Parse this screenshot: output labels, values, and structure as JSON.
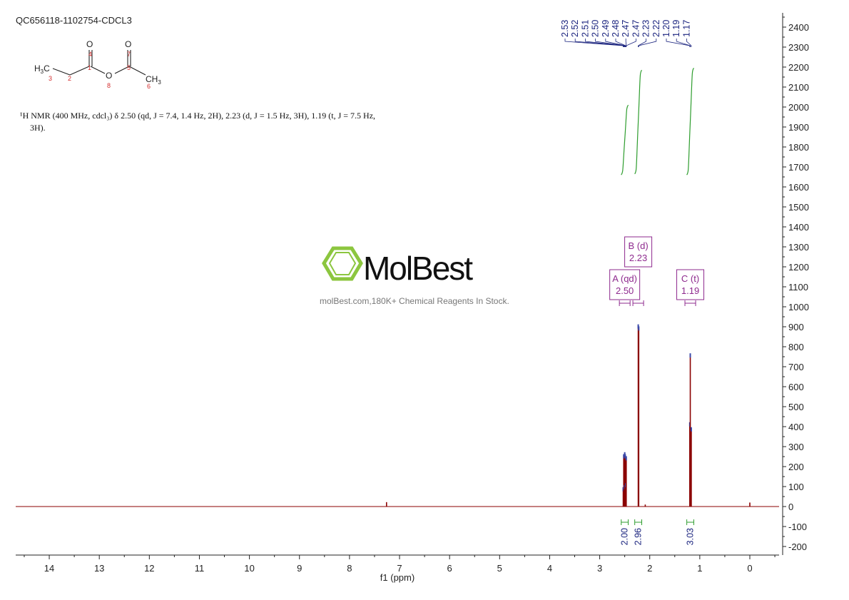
{
  "sample_id": "QC656118-1102754-CDCL3",
  "molecule": {
    "atoms": [
      {
        "sym": "H3C",
        "num": "3"
      },
      {
        "sym": "",
        "num": "2"
      },
      {
        "sym": "",
        "num": "1"
      },
      {
        "sym": "O",
        "num": "4"
      },
      {
        "sym": "O",
        "num": "8"
      },
      {
        "sym": "",
        "num": "5"
      },
      {
        "sym": "O",
        "num": "7"
      },
      {
        "sym": "CH3",
        "num": "6"
      }
    ]
  },
  "description": {
    "line1": "¹H NMR (400 MHz, cdcl₃) δ 2.50 (qd, J = 7.4, 1.4 Hz, 2H), 2.23 (d, J = 1.5 Hz, 3H), 1.19 (t, J = 7.5 Hz,",
    "line2": "3H)."
  },
  "watermark": {
    "brand": "MolBest",
    "tagline": "molBest.com,180K+ Chemical Reagents In Stock."
  },
  "colors": {
    "spectrum": "#8b0000",
    "peak_labels": "#1a237e",
    "integral_curve": "#2e9d2e",
    "multiplet_box": "#8e2a8e",
    "logo": "#8cc63f"
  },
  "chart_data": {
    "type": "line",
    "xlabel": "f1 (ppm)",
    "xlim": [
      14.7,
      -0.6
    ],
    "x_reversed": true,
    "ylim": [
      -240,
      2460
    ],
    "x_ticks": [
      "14",
      "13",
      "12",
      "11",
      "10",
      "9",
      "8",
      "7",
      "6",
      "5",
      "4",
      "3",
      "2",
      "1",
      "0"
    ],
    "y_ticks": [
      "2400",
      "2300",
      "2200",
      "2100",
      "2000",
      "1900",
      "1800",
      "1700",
      "1600",
      "1500",
      "1400",
      "1300",
      "1200",
      "1100",
      "1000",
      "900",
      "800",
      "700",
      "600",
      "500",
      "400",
      "300",
      "200",
      "100",
      "0",
      "-100",
      "-200"
    ],
    "peaks": [
      {
        "ppm": 7.26,
        "height": 22
      },
      {
        "ppm": 2.53,
        "height": 90
      },
      {
        "ppm": 2.52,
        "height": 255
      },
      {
        "ppm": 2.51,
        "height": 100
      },
      {
        "ppm": 2.5,
        "height": 265
      },
      {
        "ppm": 2.49,
        "height": 255
      },
      {
        "ppm": 2.48,
        "height": 110
      },
      {
        "ppm": 2.47,
        "height": 245
      },
      {
        "ppm": 2.23,
        "height": 905
      },
      {
        "ppm": 2.22,
        "height": 895
      },
      {
        "ppm": 2.09,
        "height": 10
      },
      {
        "ppm": 1.2,
        "height": 415
      },
      {
        "ppm": 1.19,
        "height": 760
      },
      {
        "ppm": 1.17,
        "height": 390
      },
      {
        "ppm": 0.0,
        "height": 20
      }
    ],
    "peak_labels": [
      "2.53",
      "2.52",
      "2.51",
      "2.50",
      "2.49",
      "2.48",
      "2.47",
      "2.47",
      "2.23",
      "2.22",
      "1.20",
      "1.19",
      "1.17"
    ],
    "integrals": [
      {
        "from": 2.57,
        "to": 2.43,
        "value": "2.00",
        "y_start": 1660,
        "y_end": 2010
      },
      {
        "from": 2.3,
        "to": 2.16,
        "value": "2.96",
        "y_start": 1665,
        "y_end": 2185
      },
      {
        "from": 1.26,
        "to": 1.12,
        "value": "3.03",
        "y_start": 1660,
        "y_end": 2195
      }
    ],
    "multiplets": [
      {
        "letter": "A (qd)",
        "shift": "2.50",
        "from": 2.55,
        "to": 2.45,
        "level": 1
      },
      {
        "letter": "B (d)",
        "shift": "2.23",
        "from": 2.28,
        "to": 2.18,
        "level": 2
      },
      {
        "letter": "C (t)",
        "shift": "1.19",
        "from": 1.24,
        "to": 1.14,
        "level": 1
      }
    ]
  }
}
